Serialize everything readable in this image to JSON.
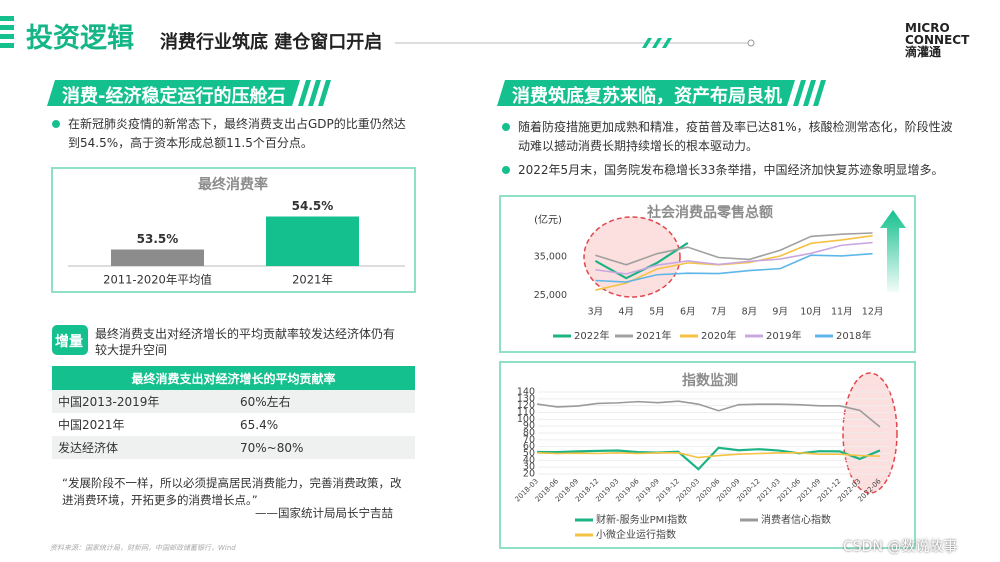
{
  "header": {
    "title": "投资逻辑",
    "subtitle": "消费行业筑底 建仓窗口开启",
    "logo": {
      "line1": "MICRO",
      "line2": "CONNECT",
      "cn": "滴灌通"
    }
  },
  "left": {
    "section_title": "消费-经济稳定运行的压舱石",
    "bullet": "在新冠肺炎疫情的新常态下，最终消费支出占GDP的比重仍然达到54.5%，高于资本形成总额11.5个百分点。",
    "increment": {
      "tag": "增量",
      "text": "最终消费支出对经济增长的平均贡献率较发达经济体仍有较大提升空间"
    },
    "table": {
      "title": "最终消费支出对经济增长的平均贡献率",
      "rows": [
        [
          "中国2013-2019年",
          "60%左右"
        ],
        [
          "中国2021年",
          "65.4%"
        ],
        [
          "发达经济体",
          "70%~80%"
        ]
      ]
    },
    "quote": "“发展阶段不一样，所以必须提高居民消费能力，完善消费政策，改进消费环境，开拓更多的消费增长点。”",
    "attribution": "——国家统计局局长宁吉喆"
  },
  "right": {
    "section_title": "消费筑底复苏来临，资产布局良机",
    "bullets": [
      "随着防疫措施更加成熟和精准，疫苗普及率已达81%，核酸检测常态化，阶段性波动难以撼动消费长期持续增长的根本驱动力。",
      "2022年5月末，国务院发布稳增长33条举措，中国经济加快复苏迹象明显增多。"
    ]
  },
  "chart_data": [
    {
      "type": "bar",
      "title": "最终消费率",
      "categories": [
        "2011-2020年平均值",
        "2021年"
      ],
      "values": [
        53.5,
        54.5
      ],
      "value_labels": [
        "53.5%",
        "54.5%"
      ],
      "colors": [
        "#8c8c8c",
        "#14c08e"
      ],
      "ylim": [
        53,
        55
      ]
    },
    {
      "type": "line",
      "title": "社会消费品零售总额",
      "y_label": "(亿元)",
      "categories": [
        "3月",
        "4月",
        "5月",
        "6月",
        "7月",
        "8月",
        "9月",
        "10月",
        "11月",
        "12月"
      ],
      "ylim": [
        22500,
        46000
      ],
      "yticks": [
        {
          "value": 25000,
          "label": "25,000"
        },
        {
          "value": 35000,
          "label": "35,000"
        }
      ],
      "grid": false,
      "series": [
        {
          "name": "2022年",
          "color": "#1db384",
          "values": [
            34000,
            29500,
            33500,
            38700,
            null,
            null,
            null,
            null,
            null,
            null
          ]
        },
        {
          "name": "2021年",
          "color": "#a0a0a0",
          "values": [
            35500,
            33000,
            35900,
            37600,
            34900,
            34400,
            36800,
            40400,
            41000,
            41300
          ]
        },
        {
          "name": "2020年",
          "color": "#f5c242",
          "values": [
            26400,
            28200,
            31900,
            33500,
            33000,
            33600,
            35300,
            38600,
            39500,
            40600
          ]
        },
        {
          "name": "2019年",
          "color": "#c9a8e0",
          "values": [
            31700,
            30600,
            32900,
            34000,
            33100,
            33900,
            34500,
            36000,
            38100,
            38800
          ]
        },
        {
          "name": "2018年",
          "color": "#5eb6e8",
          "values": [
            28900,
            28500,
            30400,
            30800,
            30700,
            31500,
            32000,
            35500,
            35300,
            35900
          ]
        }
      ]
    },
    {
      "type": "line",
      "title": "指数监测",
      "categories": [
        "2018-03",
        "2018-06",
        "2018-09",
        "2018-12",
        "2019-03",
        "2019-06",
        "2019-09",
        "2019-12",
        "2020-03",
        "2020-06",
        "2020-09",
        "2020-12",
        "2021-03",
        "2021-06",
        "2021-09",
        "2021-12",
        "2022-03",
        "2022-06"
      ],
      "ylim": [
        20,
        140
      ],
      "yticks": [
        20,
        30,
        40,
        50,
        60,
        70,
        80,
        90,
        100,
        110,
        120,
        130,
        140
      ],
      "grid": true,
      "series": [
        {
          "name": "财新-服务业PMI指数",
          "color": "#1db384",
          "values": [
            52.3,
            52.0,
            53.1,
            53.8,
            54.4,
            52.0,
            51.3,
            52.5,
            27,
            58.4,
            54.8,
            56.3,
            54.3,
            50.3,
            53.4,
            53.1,
            42.0,
            54.5
          ]
        },
        {
          "name": "消费者信心指数",
          "color": "#9a9a9a",
          "values": [
            122.3,
            118.2,
            119.4,
            123.3,
            124.1,
            125.9,
            124.4,
            126.6,
            122.2,
            112.6,
            121.5,
            122.1,
            122.2,
            121.5,
            119.8,
            119.8,
            113.2,
            88.9
          ]
        },
        {
          "name": "小微企业运行指数",
          "color": "#f5c242",
          "values": [
            51,
            50,
            50.5,
            50,
            51,
            50,
            51,
            51,
            44,
            47,
            49,
            50,
            51,
            51,
            49,
            49,
            47,
            46
          ]
        }
      ]
    }
  ],
  "footer": {
    "source": "资料来源：国家统计局，财新网，中国邮政储蓄银行，Wind",
    "watermark": "CSDN @数说故事"
  }
}
